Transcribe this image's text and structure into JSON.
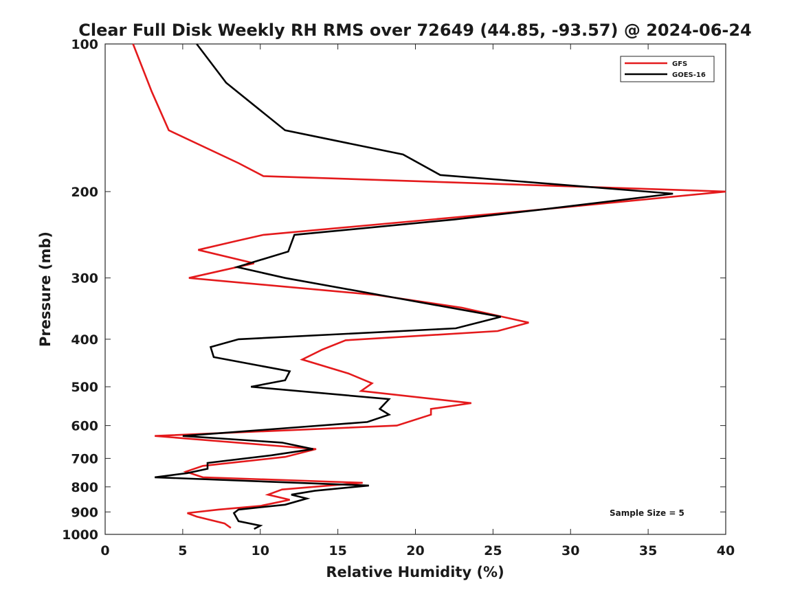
{
  "chart_data": {
    "type": "line",
    "title": "Clear Full Disk Weekly RH RMS over 72649 (44.85, -93.57) @ 2024-06-24",
    "xlabel": "Relative Humidity (%)",
    "ylabel": "Pressure (mb)",
    "xlim": [
      0,
      40
    ],
    "ylim": [
      100,
      1000
    ],
    "y_scale": "log",
    "y_reversed": true,
    "x_ticks": [
      0,
      5,
      10,
      15,
      20,
      25,
      30,
      35,
      40
    ],
    "y_ticks": [
      100,
      200,
      300,
      400,
      500,
      600,
      700,
      800,
      900,
      1000
    ],
    "grid": false,
    "legend_position": "top-right",
    "annotation": "Sample Size = 5",
    "series": [
      {
        "name": "GFS",
        "color": "#e41a1c",
        "points": [
          [
            1.8,
            100
          ],
          [
            3.0,
            125
          ],
          [
            4.1,
            150
          ],
          [
            8.6,
            175
          ],
          [
            10.2,
            186
          ],
          [
            40.0,
            200
          ],
          [
            27.8,
            218
          ],
          [
            10.2,
            245
          ],
          [
            8.5,
            252
          ],
          [
            6.0,
            263
          ],
          [
            9.6,
            280
          ],
          [
            5.4,
            300
          ],
          [
            17.5,
            325
          ],
          [
            23.0,
            345
          ],
          [
            27.3,
            370
          ],
          [
            25.3,
            385
          ],
          [
            15.5,
            402
          ],
          [
            14.0,
            420
          ],
          [
            12.7,
            440
          ],
          [
            15.7,
            470
          ],
          [
            17.2,
            492
          ],
          [
            16.5,
            510
          ],
          [
            23.6,
            540
          ],
          [
            21.0,
            555
          ],
          [
            21.0,
            570
          ],
          [
            18.8,
            600
          ],
          [
            3.2,
            630
          ],
          [
            13.6,
            670
          ],
          [
            11.6,
            695
          ],
          [
            6.3,
            725
          ],
          [
            5.2,
            745
          ],
          [
            6.3,
            765
          ],
          [
            16.6,
            785
          ],
          [
            11.4,
            810
          ],
          [
            10.5,
            830
          ],
          [
            11.9,
            850
          ],
          [
            10.0,
            875
          ],
          [
            7.3,
            890
          ],
          [
            5.3,
            905
          ],
          [
            5.9,
            920
          ],
          [
            7.7,
            950
          ],
          [
            8.1,
            970
          ]
        ]
      },
      {
        "name": "GOES-16",
        "color": "#000000",
        "points": [
          [
            5.9,
            100
          ],
          [
            7.8,
            120
          ],
          [
            11.6,
            150
          ],
          [
            19.2,
            168
          ],
          [
            21.6,
            185
          ],
          [
            36.6,
            202
          ],
          [
            27.9,
            218
          ],
          [
            22.5,
            228
          ],
          [
            12.2,
            245
          ],
          [
            11.8,
            265
          ],
          [
            8.5,
            285
          ],
          [
            11.6,
            300
          ],
          [
            17.7,
            325
          ],
          [
            25.5,
            360
          ],
          [
            22.6,
            380
          ],
          [
            8.6,
            400
          ],
          [
            6.8,
            415
          ],
          [
            7.0,
            435
          ],
          [
            11.9,
            465
          ],
          [
            11.6,
            485
          ],
          [
            9.4,
            500
          ],
          [
            18.3,
            530
          ],
          [
            17.7,
            555
          ],
          [
            18.3,
            570
          ],
          [
            16.9,
            590
          ],
          [
            5.0,
            630
          ],
          [
            11.4,
            650
          ],
          [
            13.4,
            670
          ],
          [
            10.7,
            690
          ],
          [
            6.6,
            715
          ],
          [
            6.6,
            735
          ],
          [
            5.3,
            750
          ],
          [
            3.2,
            765
          ],
          [
            17.0,
            795
          ],
          [
            13.5,
            815
          ],
          [
            12.0,
            830
          ],
          [
            13.0,
            845
          ],
          [
            11.6,
            870
          ],
          [
            8.6,
            890
          ],
          [
            8.3,
            905
          ],
          [
            8.6,
            940
          ],
          [
            10.0,
            960
          ],
          [
            9.6,
            975
          ]
        ]
      }
    ]
  }
}
